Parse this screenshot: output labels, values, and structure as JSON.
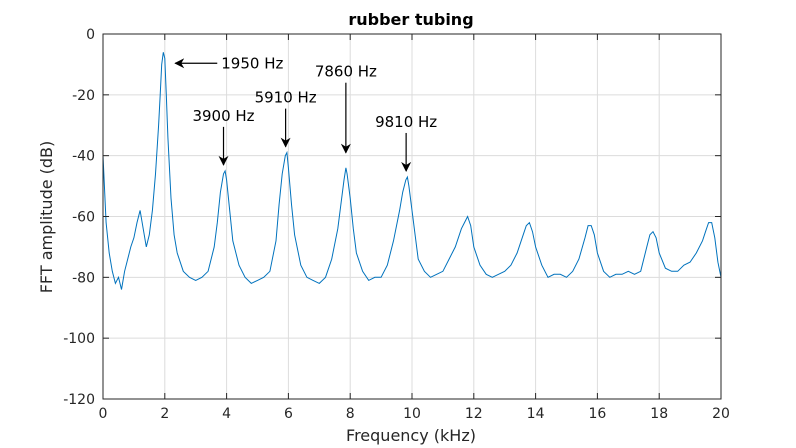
{
  "chart_data": {
    "type": "line",
    "title": "rubber tubing",
    "xlabel": "Frequency (kHz)",
    "ylabel": "FFT amplitude (dB)",
    "xlim": [
      0,
      20
    ],
    "ylim": [
      -120,
      0
    ],
    "xticks": [
      0,
      2,
      4,
      6,
      8,
      10,
      12,
      14,
      16,
      18,
      20
    ],
    "yticks": [
      0,
      -20,
      -40,
      -60,
      -80,
      -100,
      -120
    ],
    "grid": true,
    "line_color": "#0072BD",
    "series": [
      {
        "x": [
          0,
          0.1,
          0.2,
          0.3,
          0.4,
          0.5,
          0.6,
          0.7,
          0.8,
          0.9,
          1.0,
          1.1,
          1.2,
          1.3,
          1.4,
          1.5,
          1.6,
          1.7,
          1.8,
          1.85,
          1.9,
          1.95,
          2.0,
          2.05,
          2.1,
          2.2,
          2.3,
          2.4,
          2.6,
          2.8,
          3.0,
          3.2,
          3.4,
          3.6,
          3.7,
          3.8,
          3.9,
          3.95,
          4.0,
          4.1,
          4.2,
          4.4,
          4.6,
          4.8,
          5.0,
          5.2,
          5.4,
          5.6,
          5.7,
          5.8,
          5.9,
          5.95,
          6.0,
          6.1,
          6.2,
          6.4,
          6.6,
          6.8,
          7.0,
          7.2,
          7.4,
          7.6,
          7.7,
          7.8,
          7.86,
          7.9,
          8.0,
          8.1,
          8.2,
          8.4,
          8.6,
          8.8,
          9.0,
          9.2,
          9.4,
          9.6,
          9.7,
          9.8,
          9.85,
          9.9,
          10.0,
          10.1,
          10.2,
          10.4,
          10.6,
          10.8,
          11.0,
          11.2,
          11.4,
          11.6,
          11.7,
          11.8,
          11.9,
          12.0,
          12.2,
          12.4,
          12.6,
          12.8,
          13.0,
          13.2,
          13.4,
          13.6,
          13.7,
          13.8,
          13.9,
          14.0,
          14.2,
          14.4,
          14.6,
          14.8,
          15.0,
          15.2,
          15.4,
          15.6,
          15.7,
          15.8,
          15.9,
          16.0,
          16.2,
          16.4,
          16.6,
          16.8,
          17.0,
          17.2,
          17.4,
          17.6,
          17.7,
          17.8,
          17.9,
          18.0,
          18.2,
          18.4,
          18.6,
          18.8,
          19.0,
          19.2,
          19.4,
          19.5,
          19.6,
          19.7,
          19.8,
          19.9,
          20.0
        ],
        "y": [
          -40,
          -62,
          -72,
          -78,
          -82,
          -80,
          -84,
          -78,
          -74,
          -70,
          -67,
          -62,
          -58,
          -64,
          -70,
          -66,
          -58,
          -46,
          -30,
          -20,
          -10,
          -6,
          -8,
          -20,
          -34,
          -54,
          -66,
          -72,
          -78,
          -80,
          -81,
          -80,
          -78,
          -70,
          -62,
          -52,
          -46,
          -45,
          -48,
          -58,
          -68,
          -76,
          -80,
          -82,
          -81,
          -80,
          -78,
          -68,
          -56,
          -46,
          -40,
          -39,
          -44,
          -56,
          -66,
          -76,
          -80,
          -81,
          -82,
          -80,
          -74,
          -64,
          -56,
          -48,
          -44,
          -46,
          -54,
          -64,
          -72,
          -78,
          -81,
          -80,
          -80,
          -76,
          -68,
          -58,
          -52,
          -48,
          -47,
          -50,
          -58,
          -66,
          -74,
          -78,
          -80,
          -79,
          -78,
          -74,
          -70,
          -64,
          -62,
          -60,
          -63,
          -70,
          -76,
          -79,
          -80,
          -79,
          -78,
          -76,
          -72,
          -66,
          -63,
          -62,
          -65,
          -70,
          -76,
          -80,
          -79,
          -79,
          -80,
          -78,
          -74,
          -67,
          -63,
          -63,
          -66,
          -72,
          -78,
          -80,
          -79,
          -79,
          -78,
          -79,
          -78,
          -70,
          -66,
          -65,
          -67,
          -72,
          -77,
          -78,
          -78,
          -76,
          -75,
          -72,
          -68,
          -65,
          -62,
          -62,
          -67,
          -75,
          -80
        ]
      }
    ],
    "annotations": [
      {
        "text": "1950 Hz",
        "x": 1.95,
        "y": -6
      },
      {
        "text": "3900 Hz",
        "x": 3.9,
        "y": -45
      },
      {
        "text": "5910 Hz",
        "x": 5.91,
        "y": -39
      },
      {
        "text": "7860 Hz",
        "x": 7.86,
        "y": -41
      },
      {
        "text": "9810 Hz",
        "x": 9.81,
        "y": -47
      }
    ]
  }
}
